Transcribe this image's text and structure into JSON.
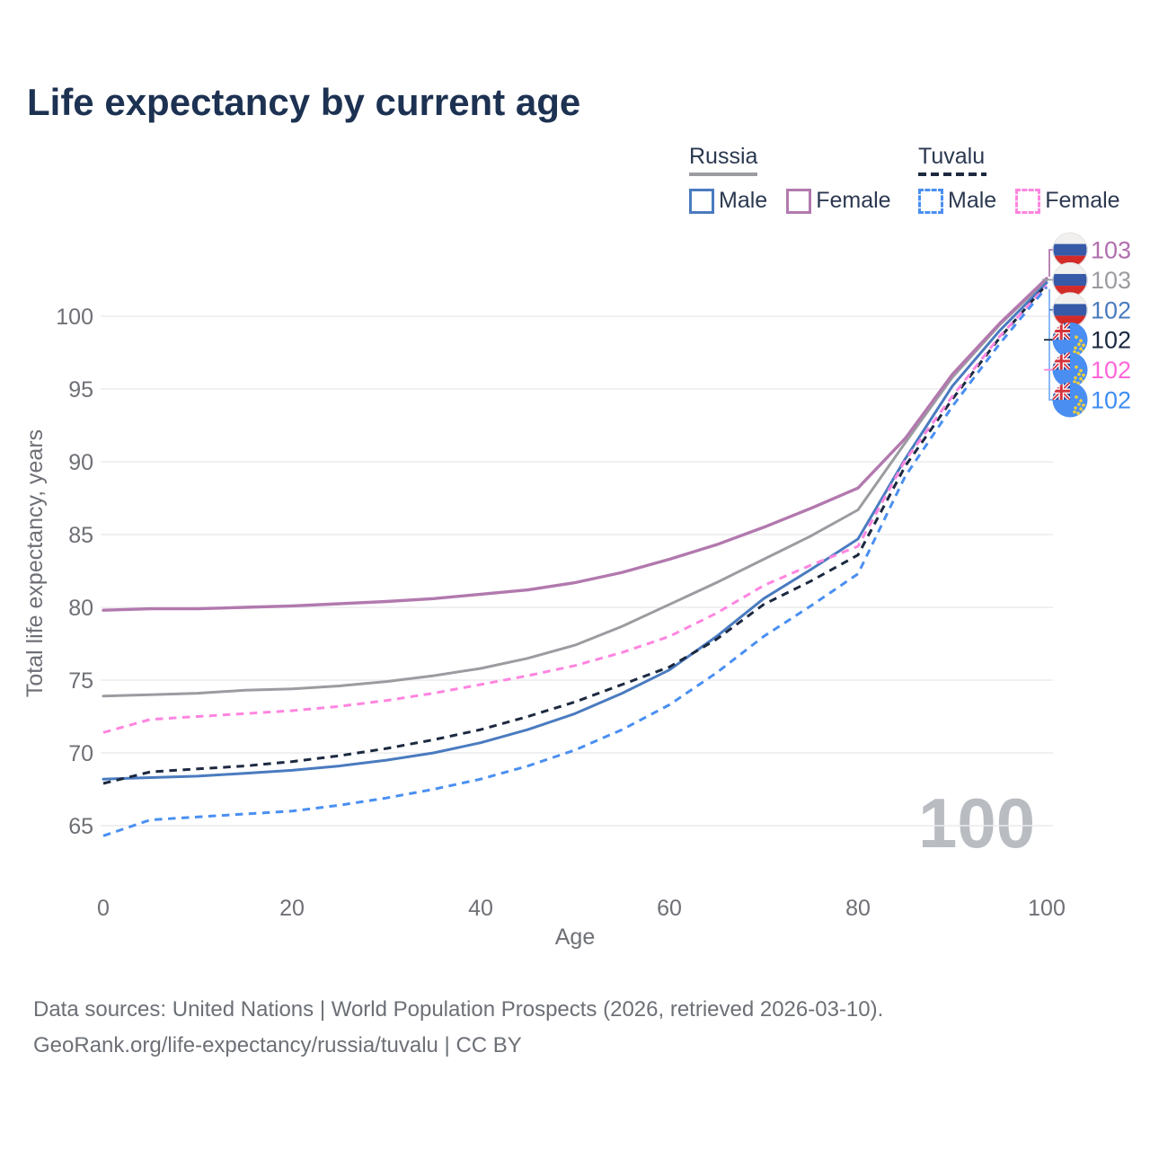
{
  "title": "Life expectancy by current age",
  "legend": {
    "groups": [
      {
        "label": "Russia",
        "line_style": "solid",
        "line_color": "#9b9ca0",
        "items": [
          {
            "label": "Male",
            "color": "#4a7bbf"
          },
          {
            "label": "Female",
            "color": "#b279ae"
          }
        ]
      },
      {
        "label": "Tuvalu",
        "line_style": "dashed",
        "line_color": "#1c2940",
        "items": [
          {
            "label": "Male",
            "color": "#4a8ff2"
          },
          {
            "label": "Female",
            "color": "#ff85e0"
          }
        ]
      }
    ]
  },
  "chart_data": {
    "type": "line",
    "title": "Life expectancy by current age",
    "xlabel": "Age",
    "ylabel": "Total life expectancy, years",
    "xlim": [
      0,
      100
    ],
    "ylim": [
      63,
      104
    ],
    "xticks": [
      0,
      20,
      40,
      60,
      80,
      100
    ],
    "yticks": [
      65,
      70,
      75,
      80,
      85,
      90,
      95,
      100
    ],
    "grid": "horizontal",
    "watermark": "100",
    "watermark_color": "#b9bcc1",
    "x": [
      0,
      5,
      10,
      15,
      20,
      25,
      30,
      35,
      40,
      45,
      50,
      55,
      60,
      65,
      70,
      75,
      80,
      85,
      90,
      95,
      100
    ],
    "series": [
      {
        "name": "Russia Female",
        "country": "russia",
        "dash": false,
        "color": "#b279ae",
        "end_label": "103",
        "end_label_color": "#b06fad",
        "values": [
          79.8,
          79.9,
          79.9,
          80.0,
          80.1,
          80.25,
          80.4,
          80.6,
          80.9,
          81.2,
          81.7,
          82.4,
          83.3,
          84.3,
          85.5,
          86.8,
          88.2,
          91.6,
          96.0,
          99.5,
          102.6
        ]
      },
      {
        "name": "Russia",
        "country": "russia",
        "dash": false,
        "color": "#9b9ca0",
        "end_label": "103",
        "end_label_color": "#9b9ca0",
        "values": [
          73.9,
          74.0,
          74.1,
          74.3,
          74.4,
          74.6,
          74.9,
          75.3,
          75.8,
          76.5,
          77.4,
          78.7,
          80.2,
          81.7,
          83.3,
          84.9,
          86.7,
          91.3,
          95.8,
          99.4,
          102.5
        ]
      },
      {
        "name": "Russia Male",
        "country": "russia",
        "dash": false,
        "color": "#4a7bbf",
        "end_label": "102",
        "end_label_color": "#4a7bbf",
        "values": [
          68.2,
          68.3,
          68.4,
          68.6,
          68.8,
          69.1,
          69.5,
          70.0,
          70.7,
          71.6,
          72.7,
          74.1,
          75.7,
          78.0,
          80.6,
          82.6,
          84.7,
          90.2,
          95.2,
          99.0,
          102.3
        ]
      },
      {
        "name": "Tuvalu",
        "country": "tuvalu",
        "dash": true,
        "color": "#1c2940",
        "end_label": "102",
        "end_label_color": "#1c2940",
        "values": [
          67.9,
          68.7,
          68.9,
          69.1,
          69.4,
          69.8,
          70.3,
          70.9,
          71.6,
          72.5,
          73.5,
          74.7,
          75.9,
          77.8,
          80.2,
          81.8,
          83.6,
          89.7,
          94.3,
          98.5,
          102.2
        ]
      },
      {
        "name": "Tuvalu Female",
        "country": "tuvalu",
        "dash": true,
        "color": "#ff85e0",
        "end_label": "102",
        "end_label_color": "#ff66d9",
        "values": [
          71.4,
          72.3,
          72.5,
          72.7,
          72.9,
          73.2,
          73.6,
          74.1,
          74.7,
          75.3,
          76.0,
          76.9,
          78.0,
          79.6,
          81.5,
          82.9,
          84.2,
          90.1,
          94.5,
          98.6,
          102.1
        ]
      },
      {
        "name": "Tuvalu Male",
        "country": "tuvalu",
        "dash": true,
        "color": "#4a8ff2",
        "end_label": "102",
        "end_label_color": "#3f8df2",
        "values": [
          64.3,
          65.4,
          65.6,
          65.8,
          66.0,
          66.4,
          66.9,
          67.5,
          68.2,
          69.1,
          70.2,
          71.6,
          73.3,
          75.5,
          78.0,
          80.1,
          82.3,
          89.0,
          93.8,
          98.1,
          102.0
        ]
      }
    ]
  },
  "footer": {
    "line1": "Data sources: United Nations | World Population Prospects (2026, retrieved 2026-03-10).",
    "line2": "GeoRank.org/life-expectancy/russia/tuvalu | CC BY"
  }
}
